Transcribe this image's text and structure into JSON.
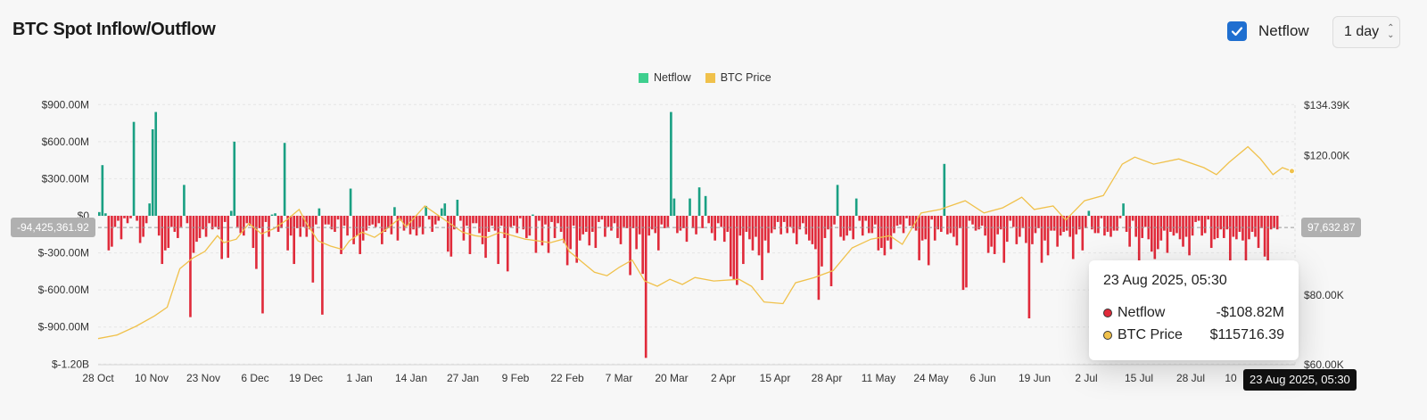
{
  "header": {
    "title": "BTC Spot Inflow/Outflow",
    "netflow_toggle_label": "Netflow",
    "interval_value": "1 day"
  },
  "legend": [
    {
      "label": "Netflow",
      "color": "#3ecf8e"
    },
    {
      "label": "BTC Price",
      "color": "#f0c14b"
    }
  ],
  "crosshair": {
    "left_value": "-94,425,361.92",
    "right_value": "97,632.87",
    "date": "23 Aug 2025, 05:30"
  },
  "tooltip": {
    "date": "23 Aug 2025, 05:30",
    "rows": [
      {
        "label": "Netflow",
        "value": "-$108.82M",
        "color": "#e02a3a"
      },
      {
        "label": "BTC Price",
        "value": "$115716.39",
        "color": "#f0c14b"
      }
    ]
  },
  "colors": {
    "positive": "#1aa083",
    "negative": "#e02a3a",
    "price_line": "#f0c14b"
  },
  "chart_data": {
    "type": "bar",
    "x_labels": [
      "28 Oct",
      "10 Nov",
      "23 Nov",
      "6 Dec",
      "19 Dec",
      "1 Jan",
      "14 Jan",
      "27 Jan",
      "9 Feb",
      "22 Feb",
      "7 Mar",
      "20 Mar",
      "2 Apr",
      "15 Apr",
      "28 Apr",
      "11 May",
      "24 May",
      "6 Jun",
      "19 Jun",
      "2 Jul",
      "15 Jul",
      "28 Jul",
      "10"
    ],
    "y_left_ticks": [
      "$900.00M",
      "$600.00M",
      "$300.00M",
      "$0",
      "$-300.00M",
      "$-600.00M",
      "$-900.00M",
      "$-1.20B"
    ],
    "y_right_ticks": [
      "$134.39K",
      "$120.00K",
      "$100.00K",
      "$80.00K",
      "$60.00K"
    ],
    "ylim_left": [
      -1200,
      900
    ],
    "ylim_right": [
      60000,
      134390
    ],
    "grid": true,
    "legend_position": "top-center",
    "series": [
      {
        "name": "Netflow",
        "type": "bar",
        "unit": "USD M",
        "start": "2024-10-28",
        "interval": "1 day",
        "values": [
          30,
          410,
          20,
          -280,
          -250,
          -90,
          -40,
          -190,
          -20,
          -60,
          -20,
          760,
          -40,
          -220,
          -170,
          -60,
          100,
          700,
          840,
          -160,
          -390,
          -280,
          -260,
          -90,
          -130,
          -180,
          -90,
          250,
          -60,
          -820,
          -300,
          -210,
          -180,
          -110,
          -170,
          -60,
          -110,
          -90,
          -110,
          -350,
          -50,
          -340,
          40,
          600,
          -90,
          -140,
          -160,
          -60,
          -80,
          -260,
          -430,
          -100,
          -790,
          -50,
          -170,
          10,
          20,
          -130,
          -100,
          590,
          -280,
          -160,
          -390,
          -100,
          -170,
          -90,
          -170,
          -110,
          -540,
          -70,
          60,
          -800,
          -70,
          -70,
          -110,
          -130,
          -30,
          -310,
          -80,
          -160,
          220,
          -230,
          -160,
          -310,
          -200,
          -120,
          -80,
          -70,
          -90,
          -60,
          -230,
          -130,
          -100,
          -150,
          70,
          -200,
          -40,
          -120,
          -80,
          -150,
          -110,
          -160,
          -90,
          -150,
          80,
          -30,
          -130,
          -70,
          -40,
          60,
          100,
          -290,
          -330,
          -110,
          130,
          -40,
          -200,
          -80,
          -310,
          -60,
          -60,
          -140,
          -230,
          -340,
          -130,
          -80,
          -120,
          -390,
          -80,
          -180,
          -450,
          -90,
          -80,
          -140,
          -20,
          -110,
          -180,
          -160,
          10,
          -300,
          -40,
          -240,
          -70,
          -300,
          -50,
          -180,
          -60,
          -130,
          -220,
          -400,
          -270,
          -80,
          -380,
          -200,
          -150,
          -130,
          -240,
          -130,
          -260,
          -50,
          -30,
          -170,
          -90,
          -120,
          -60,
          -180,
          -230,
          -90,
          -100,
          -480,
          -100,
          -270,
          -150,
          -470,
          -1150,
          -160,
          -110,
          -140,
          -280,
          -70,
          -100,
          -90,
          840,
          140,
          -140,
          -120,
          -100,
          -210,
          140,
          -100,
          -150,
          230,
          -100,
          160,
          -60,
          -140,
          -200,
          -60,
          -90,
          -210,
          -130,
          -490,
          -520,
          -560,
          -160,
          -390,
          -130,
          -190,
          -280,
          -170,
          -320,
          -520,
          -200,
          -300,
          -140,
          -110,
          -50,
          -150,
          -50,
          -140,
          -90,
          -140,
          -230,
          -110,
          -60,
          -150,
          -200,
          -230,
          -270,
          -680,
          -410,
          -180,
          -110,
          -570,
          -70,
          250,
          -170,
          -200,
          -160,
          -120,
          -190,
          140,
          -40,
          -160,
          -40,
          -140,
          -140,
          -70,
          -280,
          -260,
          -320,
          -200,
          -270,
          -140,
          -80,
          -70,
          -140,
          -20,
          -80,
          -100,
          -120,
          -360,
          -200,
          -190,
          -400,
          -30,
          -200,
          -110,
          -130,
          420,
          -150,
          -140,
          -170,
          -240,
          -100,
          -600,
          -580,
          -40,
          -70,
          -120,
          -110,
          -80,
          -160,
          -300,
          -250,
          -310,
          -150,
          -110,
          -380,
          -210,
          -40,
          -90,
          -230,
          -170,
          -100,
          -220,
          -830,
          -230,
          -140,
          -100,
          -380,
          -200,
          -320,
          -120,
          -120,
          -250,
          -160,
          -130,
          -120,
          -170,
          -350,
          -150,
          -110,
          -280,
          -100,
          40,
          -110,
          -140,
          -140,
          -20,
          -160,
          -130,
          -170,
          -120,
          -120,
          -20,
          100,
          -130,
          -250,
          -40,
          -170,
          -530,
          -180,
          -90,
          -190,
          -290,
          -350,
          -270,
          -200,
          -120,
          -300,
          -130,
          -160,
          -140,
          -190,
          -250,
          -170,
          -320,
          -160,
          -50,
          -40,
          -160,
          -140,
          -30,
          -260,
          -190,
          -180,
          -110,
          -180,
          -110,
          -400,
          -170,
          -190,
          -130,
          -200,
          -400,
          -190,
          -130,
          -170,
          -260,
          -100,
          -330,
          -430,
          -110,
          -100,
          -110
        ]
      },
      {
        "name": "BTC Price",
        "type": "line",
        "unit": "USD",
        "points": [
          [
            0,
            67500
          ],
          [
            6,
            68500
          ],
          [
            12,
            71000
          ],
          [
            18,
            74000
          ],
          [
            22,
            76500
          ],
          [
            26,
            87500
          ],
          [
            30,
            90500
          ],
          [
            34,
            92500
          ],
          [
            38,
            97000
          ],
          [
            40,
            95000
          ],
          [
            44,
            96000
          ],
          [
            48,
            100500
          ],
          [
            52,
            97500
          ],
          [
            56,
            99000
          ],
          [
            60,
            101500
          ],
          [
            64,
            104500
          ],
          [
            66,
            101000
          ],
          [
            70,
            95500
          ],
          [
            74,
            94000
          ],
          [
            78,
            93000
          ],
          [
            80,
            95500
          ],
          [
            84,
            98000
          ],
          [
            88,
            96500
          ],
          [
            92,
            99000
          ],
          [
            96,
            102000
          ],
          [
            98,
            99500
          ],
          [
            104,
            105500
          ],
          [
            108,
            103000
          ],
          [
            112,
            100500
          ],
          [
            116,
            98000
          ],
          [
            120,
            97000
          ],
          [
            124,
            96500
          ],
          [
            128,
            98000
          ],
          [
            132,
            97000
          ],
          [
            136,
            96000
          ],
          [
            140,
            95500
          ],
          [
            144,
            95000
          ],
          [
            148,
            96000
          ],
          [
            150,
            92500
          ],
          [
            154,
            89500
          ],
          [
            158,
            86500
          ],
          [
            162,
            85500
          ],
          [
            166,
            88000
          ],
          [
            170,
            90000
          ],
          [
            174,
            84000
          ],
          [
            178,
            82500
          ],
          [
            182,
            84500
          ],
          [
            186,
            83000
          ],
          [
            190,
            85000
          ],
          [
            196,
            84000
          ],
          [
            204,
            84500
          ],
          [
            208,
            82500
          ],
          [
            212,
            78000
          ],
          [
            218,
            77500
          ],
          [
            222,
            83500
          ],
          [
            228,
            85000
          ],
          [
            234,
            87000
          ],
          [
            240,
            93500
          ],
          [
            246,
            96000
          ],
          [
            252,
            97000
          ],
          [
            256,
            94500
          ],
          [
            262,
            103500
          ],
          [
            268,
            104500
          ],
          [
            276,
            107000
          ],
          [
            282,
            103500
          ],
          [
            288,
            105000
          ],
          [
            294,
            108000
          ],
          [
            298,
            104500
          ],
          [
            304,
            105500
          ],
          [
            308,
            101500
          ],
          [
            314,
            107000
          ],
          [
            320,
            108500
          ],
          [
            326,
            117500
          ],
          [
            330,
            119500
          ],
          [
            336,
            117500
          ],
          [
            344,
            119000
          ],
          [
            352,
            116500
          ],
          [
            356,
            114500
          ],
          [
            360,
            118000
          ],
          [
            366,
            122500
          ],
          [
            370,
            119000
          ],
          [
            374,
            114500
          ],
          [
            377,
            116500
          ],
          [
            380,
            115500
          ]
        ]
      }
    ]
  }
}
